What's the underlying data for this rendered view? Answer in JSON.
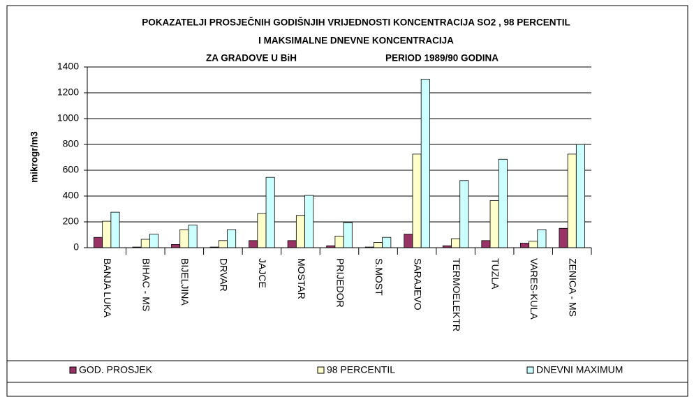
{
  "chart_data": {
    "type": "bar",
    "title": [
      "POKAZATELJI PROSJEČNIH GODIŠNJIH VRIJEDNOSTI KONCENTRACIJA SO2 , 98 PERCENTIL",
      "I MAKSIMALNE DNEVNE KONCENTRACIJA"
    ],
    "subtitle": [
      "ZA GRADOVE U BiH",
      "PERIOD 1989/90 GODINA"
    ],
    "y_label": "mikrogr/m3",
    "categories": [
      "BANJA LUKA",
      "BIHAC - MS",
      "BIJELJINA",
      "DRVAR",
      "JAJCE",
      "MOSTAR",
      "PRIJEDOR",
      "S.MOST",
      "SARAJEVO",
      "TERMOELEKTR",
      "TUZLA",
      "VARES-KULA",
      "ZENICA - MS"
    ],
    "series": [
      {
        "name": "GOD. PROSJEK",
        "color": "#993366",
        "values": [
          80,
          5,
          25,
          5,
          55,
          55,
          15,
          5,
          105,
          15,
          55,
          35,
          150
        ]
      },
      {
        "name": "98 PERCENTIL",
        "color": "#ffffcc",
        "values": [
          205,
          65,
          140,
          55,
          265,
          250,
          90,
          40,
          725,
          70,
          365,
          50,
          725
        ]
      },
      {
        "name": "DNEVNI MAXIMUM",
        "color": "#ccffff",
        "values": [
          275,
          105,
          175,
          140,
          545,
          405,
          195,
          80,
          1305,
          520,
          685,
          140,
          800
        ]
      }
    ],
    "ylim": [
      0,
      1400
    ],
    "yticks": [
      0,
      200,
      400,
      600,
      800,
      1000,
      1200,
      1400
    ],
    "grid": true,
    "legend": "bottom"
  }
}
